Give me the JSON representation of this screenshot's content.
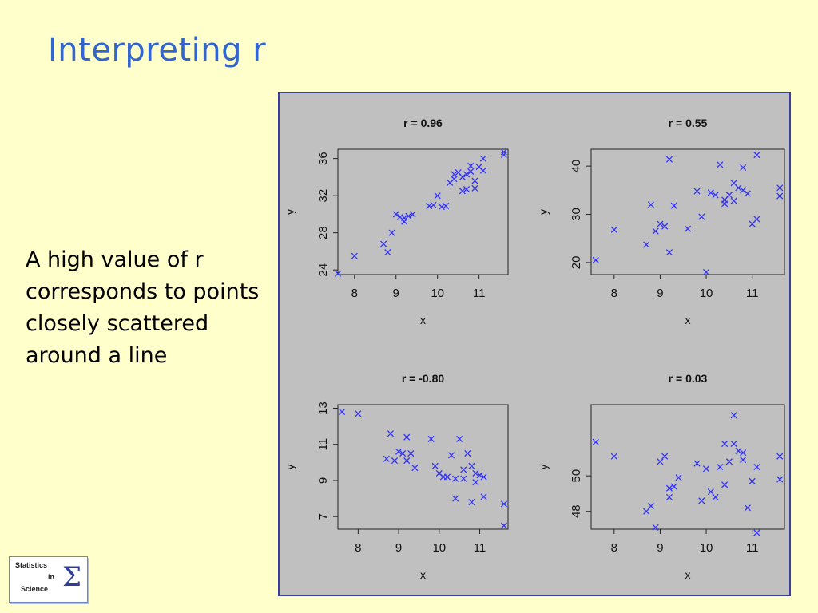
{
  "slide": {
    "title": "Interpreting r",
    "body_text": "A high value of r corresponds to points closely scattered around a line"
  },
  "logo": {
    "line1": "Statistics",
    "line2": "in",
    "line3": "Science",
    "symbol": "Σ"
  },
  "colors": {
    "background": "#ffffcc",
    "title": "#3366cc",
    "points": "#3333ff",
    "plot_bg": "#c0c0c0"
  },
  "chart_data": [
    {
      "type": "scatter",
      "title": "r = 0.96",
      "xlabel": "x",
      "ylabel": "y",
      "xlim": [
        7.6,
        11.7
      ],
      "ylim": [
        23.5,
        37.0
      ],
      "xticks": [
        8,
        9,
        10,
        11
      ],
      "yticks": [
        24,
        28,
        32,
        36
      ],
      "marker": "x",
      "points": [
        [
          7.6,
          23.6
        ],
        [
          8.0,
          25.5
        ],
        [
          8.7,
          26.8
        ],
        [
          8.8,
          25.9
        ],
        [
          8.9,
          28.0
        ],
        [
          9.0,
          30.0
        ],
        [
          9.1,
          29.7
        ],
        [
          9.2,
          29.2
        ],
        [
          9.2,
          29.6
        ],
        [
          9.3,
          29.8
        ],
        [
          9.4,
          30.0
        ],
        [
          9.8,
          30.9
        ],
        [
          9.9,
          31.0
        ],
        [
          10.0,
          32.0
        ],
        [
          10.1,
          30.8
        ],
        [
          10.2,
          30.9
        ],
        [
          10.3,
          33.4
        ],
        [
          10.4,
          34.3
        ],
        [
          10.4,
          33.8
        ],
        [
          10.5,
          34.5
        ],
        [
          10.6,
          34.0
        ],
        [
          10.6,
          32.5
        ],
        [
          10.7,
          32.7
        ],
        [
          10.7,
          34.3
        ],
        [
          10.8,
          35.2
        ],
        [
          10.8,
          34.6
        ],
        [
          10.9,
          33.6
        ],
        [
          10.9,
          32.8
        ],
        [
          11.0,
          35.1
        ],
        [
          11.1,
          36.0
        ],
        [
          11.1,
          34.7
        ],
        [
          11.6,
          36.7
        ],
        [
          11.6,
          36.4
        ]
      ]
    },
    {
      "type": "scatter",
      "title": "r = 0.55",
      "xlabel": "x",
      "ylabel": "y",
      "xlim": [
        7.5,
        11.7
      ],
      "ylim": [
        17.5,
        43.5
      ],
      "xticks": [
        8,
        9,
        10,
        11
      ],
      "yticks": [
        20,
        30,
        40
      ],
      "marker": "x",
      "points": [
        [
          7.6,
          20.5
        ],
        [
          8.0,
          26.8
        ],
        [
          8.7,
          23.7
        ],
        [
          8.8,
          32.0
        ],
        [
          8.9,
          26.5
        ],
        [
          9.0,
          28.0
        ],
        [
          9.1,
          27.5
        ],
        [
          9.2,
          22.1
        ],
        [
          9.2,
          41.4
        ],
        [
          9.3,
          31.8
        ],
        [
          9.6,
          27.0
        ],
        [
          9.8,
          34.8
        ],
        [
          9.9,
          29.5
        ],
        [
          10.0,
          18.0
        ],
        [
          10.1,
          34.5
        ],
        [
          10.2,
          34.0
        ],
        [
          10.3,
          40.3
        ],
        [
          10.4,
          33.0
        ],
        [
          10.4,
          32.2
        ],
        [
          10.5,
          34.0
        ],
        [
          10.6,
          36.5
        ],
        [
          10.6,
          32.8
        ],
        [
          10.7,
          35.5
        ],
        [
          10.8,
          39.7
        ],
        [
          10.8,
          35.0
        ],
        [
          10.9,
          34.3
        ],
        [
          11.0,
          28.0
        ],
        [
          11.1,
          29.0
        ],
        [
          11.1,
          42.3
        ],
        [
          11.6,
          35.5
        ],
        [
          11.6,
          33.8
        ]
      ]
    },
    {
      "type": "scatter",
      "title": "r = -0.80",
      "xlabel": "x",
      "ylabel": "y",
      "xlim": [
        7.5,
        11.7
      ],
      "ylim": [
        6.3,
        13.2
      ],
      "xticks": [
        8,
        9,
        10,
        11
      ],
      "yticks": [
        7,
        9,
        11,
        13
      ],
      "marker": "x",
      "points": [
        [
          7.6,
          12.8
        ],
        [
          8.0,
          12.7
        ],
        [
          8.7,
          10.2
        ],
        [
          8.8,
          11.6
        ],
        [
          8.9,
          10.1
        ],
        [
          9.0,
          10.6
        ],
        [
          9.1,
          10.5
        ],
        [
          9.2,
          11.4
        ],
        [
          9.2,
          10.1
        ],
        [
          9.3,
          10.5
        ],
        [
          9.4,
          9.7
        ],
        [
          9.8,
          11.3
        ],
        [
          9.9,
          9.8
        ],
        [
          10.0,
          9.4
        ],
        [
          10.1,
          9.2
        ],
        [
          10.2,
          9.2
        ],
        [
          10.3,
          10.4
        ],
        [
          10.4,
          9.1
        ],
        [
          10.4,
          8.0
        ],
        [
          10.5,
          11.3
        ],
        [
          10.6,
          9.6
        ],
        [
          10.6,
          9.1
        ],
        [
          10.7,
          10.5
        ],
        [
          10.8,
          9.8
        ],
        [
          10.8,
          7.8
        ],
        [
          10.9,
          9.4
        ],
        [
          10.9,
          8.9
        ],
        [
          11.0,
          9.3
        ],
        [
          11.1,
          8.1
        ],
        [
          11.1,
          9.2
        ],
        [
          11.6,
          7.7
        ],
        [
          11.6,
          6.5
        ]
      ]
    },
    {
      "type": "scatter",
      "title": "r = 0.03",
      "xlabel": "x",
      "ylabel": "y",
      "xlim": [
        7.5,
        11.7
      ],
      "ylim": [
        47.0,
        54.0
      ],
      "xticks": [
        8,
        9,
        10,
        11
      ],
      "yticks": [
        48,
        50
      ],
      "marker": "x",
      "points": [
        [
          7.6,
          51.9
        ],
        [
          8.0,
          51.1
        ],
        [
          8.7,
          48.0
        ],
        [
          8.8,
          48.3
        ],
        [
          8.9,
          47.1
        ],
        [
          9.0,
          50.8
        ],
        [
          9.1,
          51.1
        ],
        [
          9.2,
          49.3
        ],
        [
          9.2,
          48.8
        ],
        [
          9.3,
          49.4
        ],
        [
          9.4,
          49.9
        ],
        [
          9.8,
          50.7
        ],
        [
          9.9,
          48.6
        ],
        [
          10.0,
          50.4
        ],
        [
          10.1,
          49.1
        ],
        [
          10.2,
          48.8
        ],
        [
          10.3,
          50.5
        ],
        [
          10.4,
          51.8
        ],
        [
          10.4,
          49.5
        ],
        [
          10.5,
          50.8
        ],
        [
          10.6,
          53.4
        ],
        [
          10.6,
          51.8
        ],
        [
          10.7,
          51.4
        ],
        [
          10.8,
          50.9
        ],
        [
          10.8,
          51.3
        ],
        [
          10.9,
          48.2
        ],
        [
          11.0,
          49.7
        ],
        [
          11.1,
          50.5
        ],
        [
          11.1,
          46.8
        ],
        [
          11.6,
          51.1
        ],
        [
          11.6,
          49.8
        ]
      ]
    }
  ]
}
